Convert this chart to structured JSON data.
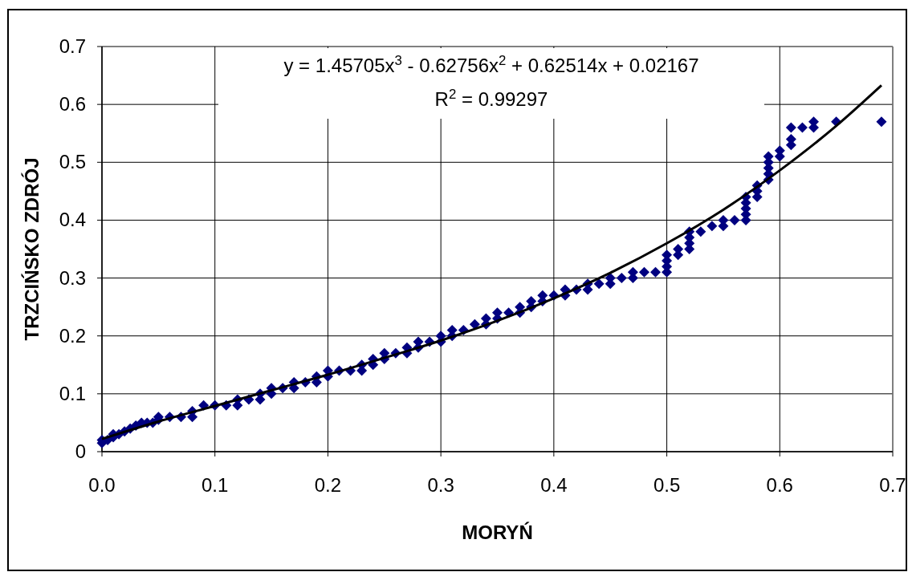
{
  "chart_data": {
    "type": "scatter",
    "xlabel": "MORYŃ",
    "ylabel": "TRZCIŃSKO ZDRÓJ",
    "xlim": [
      0,
      0.7
    ],
    "ylim": [
      0,
      0.7
    ],
    "xticks": [
      {
        "value": 0,
        "label": "0.0"
      },
      0.1,
      0.2,
      0.3,
      0.4,
      0.5,
      0.6,
      0.7
    ],
    "yticks": [
      0,
      0.1,
      0.2,
      0.3,
      0.4,
      0.5,
      0.6,
      0.7
    ],
    "grid": true,
    "annotations": [
      "y = 1.45705x$^{3}$ - 0.62756x$^{2}$ + 0.62514x + 0.02167",
      "R$^{2}$ = 0.99297"
    ],
    "series": [
      {
        "marker": "diamond",
        "color": "#000080",
        "x": [
          0,
          0,
          0.005,
          0.01,
          0.01,
          0.015,
          0.02,
          0.025,
          0.03,
          0.035,
          0.04,
          0.045,
          0.05,
          0.05,
          0.06,
          0.07,
          0.08,
          0.08,
          0.09,
          0.1,
          0.11,
          0.12,
          0.12,
          0.13,
          0.14,
          0.14,
          0.15,
          0.15,
          0.16,
          0.17,
          0.17,
          0.18,
          0.19,
          0.19,
          0.2,
          0.2,
          0.21,
          0.22,
          0.23,
          0.23,
          0.24,
          0.24,
          0.25,
          0.25,
          0.26,
          0.27,
          0.27,
          0.28,
          0.28,
          0.29,
          0.3,
          0.3,
          0.31,
          0.31,
          0.32,
          0.33,
          0.34,
          0.34,
          0.35,
          0.35,
          0.36,
          0.37,
          0.37,
          0.38,
          0.38,
          0.39,
          0.39,
          0.4,
          0.41,
          0.41,
          0.42,
          0.43,
          0.43,
          0.44,
          0.45,
          0.45,
          0.46,
          0.47,
          0.47,
          0.48,
          0.49,
          0.5,
          0.5,
          0.5,
          0.5,
          0.51,
          0.51,
          0.52,
          0.52,
          0.52,
          0.52,
          0.53,
          0.54,
          0.55,
          0.55,
          0.56,
          0.57,
          0.57,
          0.57,
          0.57,
          0.57,
          0.58,
          0.58,
          0.58,
          0.59,
          0.59,
          0.59,
          0.59,
          0.59,
          0.6,
          0.6,
          0.61,
          0.61,
          0.61,
          0.62,
          0.63,
          0.63,
          0.65,
          0.69
        ],
        "values": [
          0.015,
          0.02,
          0.02,
          0.025,
          0.03,
          0.03,
          0.035,
          0.04,
          0.045,
          0.05,
          0.05,
          0.05,
          0.06,
          0.055,
          0.06,
          0.06,
          0.07,
          0.06,
          0.08,
          0.08,
          0.08,
          0.09,
          0.08,
          0.09,
          0.1,
          0.09,
          0.11,
          0.1,
          0.11,
          0.12,
          0.11,
          0.12,
          0.13,
          0.12,
          0.14,
          0.13,
          0.14,
          0.14,
          0.15,
          0.14,
          0.16,
          0.15,
          0.17,
          0.16,
          0.17,
          0.18,
          0.17,
          0.19,
          0.18,
          0.19,
          0.2,
          0.19,
          0.21,
          0.2,
          0.21,
          0.22,
          0.23,
          0.22,
          0.24,
          0.23,
          0.24,
          0.25,
          0.24,
          0.26,
          0.25,
          0.27,
          0.26,
          0.27,
          0.28,
          0.27,
          0.28,
          0.29,
          0.28,
          0.29,
          0.3,
          0.29,
          0.3,
          0.31,
          0.3,
          0.31,
          0.31,
          0.31,
          0.32,
          0.33,
          0.34,
          0.34,
          0.35,
          0.35,
          0.36,
          0.37,
          0.38,
          0.38,
          0.39,
          0.4,
          0.39,
          0.4,
          0.4,
          0.41,
          0.42,
          0.43,
          0.44,
          0.44,
          0.45,
          0.46,
          0.47,
          0.48,
          0.49,
          0.5,
          0.51,
          0.51,
          0.52,
          0.53,
          0.54,
          0.56,
          0.56,
          0.56,
          0.57,
          0.57,
          0.57
        ]
      },
      {
        "type": "line",
        "marker": "none",
        "line_style": "solid",
        "color": "#000000",
        "x": [
          0,
          0.05,
          0.1,
          0.15,
          0.2,
          0.25,
          0.3,
          0.35,
          0.4,
          0.45,
          0.5,
          0.55,
          0.6,
          0.65,
          0.69
        ],
        "values": [
          0.022,
          0.052,
          0.079,
          0.106,
          0.133,
          0.162,
          0.192,
          0.226,
          0.265,
          0.309,
          0.36,
          0.418,
          0.486,
          0.563,
          0.633
        ]
      }
    ]
  }
}
